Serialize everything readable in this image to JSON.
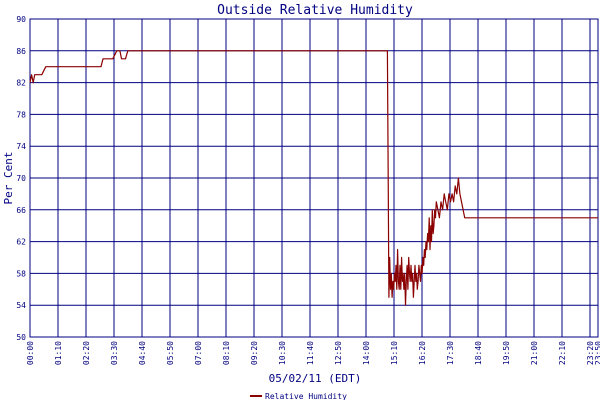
{
  "chart_data": {
    "type": "line",
    "title": "Outside Relative Humidity",
    "xlabel": "05/02/11 (EDT)",
    "ylabel": "Per Cent",
    "ylim": [
      50,
      90
    ],
    "yticks": [
      50,
      54,
      58,
      62,
      66,
      70,
      74,
      78,
      82,
      86,
      90
    ],
    "xlim": [
      0,
      1440
    ],
    "xtick_labels": [
      "00:00",
      "01:10",
      "02:20",
      "03:30",
      "04:40",
      "05:50",
      "07:00",
      "08:10",
      "09:20",
      "10:30",
      "11:40",
      "12:50",
      "14:00",
      "15:10",
      "16:20",
      "17:30",
      "18:40",
      "19:50",
      "21:00",
      "22:10",
      "23:20",
      "23:50"
    ],
    "grid": true,
    "legend_position": "bottom-center",
    "colors": {
      "series": "#8b0000",
      "grid": "#000080",
      "text": "#000080"
    },
    "series": [
      {
        "name": "Relative Humidity",
        "x": [
          0,
          4,
          8,
          12,
          30,
          40,
          100,
          180,
          185,
          210,
          220,
          228,
          232,
          242,
          248,
          254,
          258,
          262,
          290,
          300,
          350,
          400,
          500,
          600,
          700,
          800,
          850,
          880,
          892,
          906,
          908,
          910,
          912,
          914,
          916,
          918,
          920,
          922,
          924,
          926,
          928,
          930,
          932,
          934,
          936,
          938,
          940,
          942,
          944,
          946,
          948,
          950,
          952,
          954,
          956,
          958,
          960,
          962,
          964,
          966,
          968,
          970,
          972,
          974,
          976,
          978,
          980,
          982,
          984,
          986,
          988,
          990,
          992,
          994,
          996,
          998,
          1000,
          1002,
          1004,
          1006,
          1008,
          1010,
          1012,
          1014,
          1016,
          1018,
          1020,
          1022,
          1024,
          1026,
          1028,
          1030,
          1034,
          1038,
          1042,
          1046,
          1050,
          1054,
          1058,
          1062,
          1066,
          1070,
          1074,
          1078,
          1082,
          1086,
          1090,
          1094,
          1098,
          1102,
          1106,
          1110,
          1114,
          1118,
          1120,
          1122,
          1124,
          1126,
          1128,
          1132,
          1136,
          1140,
          1440
        ],
        "values": [
          82,
          83,
          82,
          83,
          83,
          84,
          84,
          84,
          85,
          85,
          86,
          86,
          85,
          85,
          86,
          86,
          86,
          86,
          86,
          86,
          86,
          86,
          86,
          86,
          86,
          86,
          86,
          86,
          86,
          86,
          70,
          55,
          60,
          56,
          58,
          55,
          57,
          56,
          58,
          57,
          59,
          56,
          61,
          57,
          56,
          59,
          56,
          60,
          57,
          58,
          56,
          58,
          54,
          57,
          59,
          56,
          60,
          58,
          57,
          59,
          57,
          58,
          55,
          57,
          59,
          57,
          58,
          56,
          57,
          59,
          58,
          57,
          59,
          58,
          60,
          59,
          61,
          60,
          62,
          61,
          63,
          62,
          65,
          61,
          64,
          62,
          66,
          63,
          64,
          66,
          65,
          67,
          66,
          65,
          67,
          66,
          68,
          67,
          66,
          68,
          67,
          68,
          67,
          69,
          68,
          70,
          68,
          67,
          66,
          65,
          65,
          65,
          65,
          65,
          65,
          65,
          65,
          65,
          65,
          65,
          65,
          65,
          65
        ]
      }
    ]
  }
}
